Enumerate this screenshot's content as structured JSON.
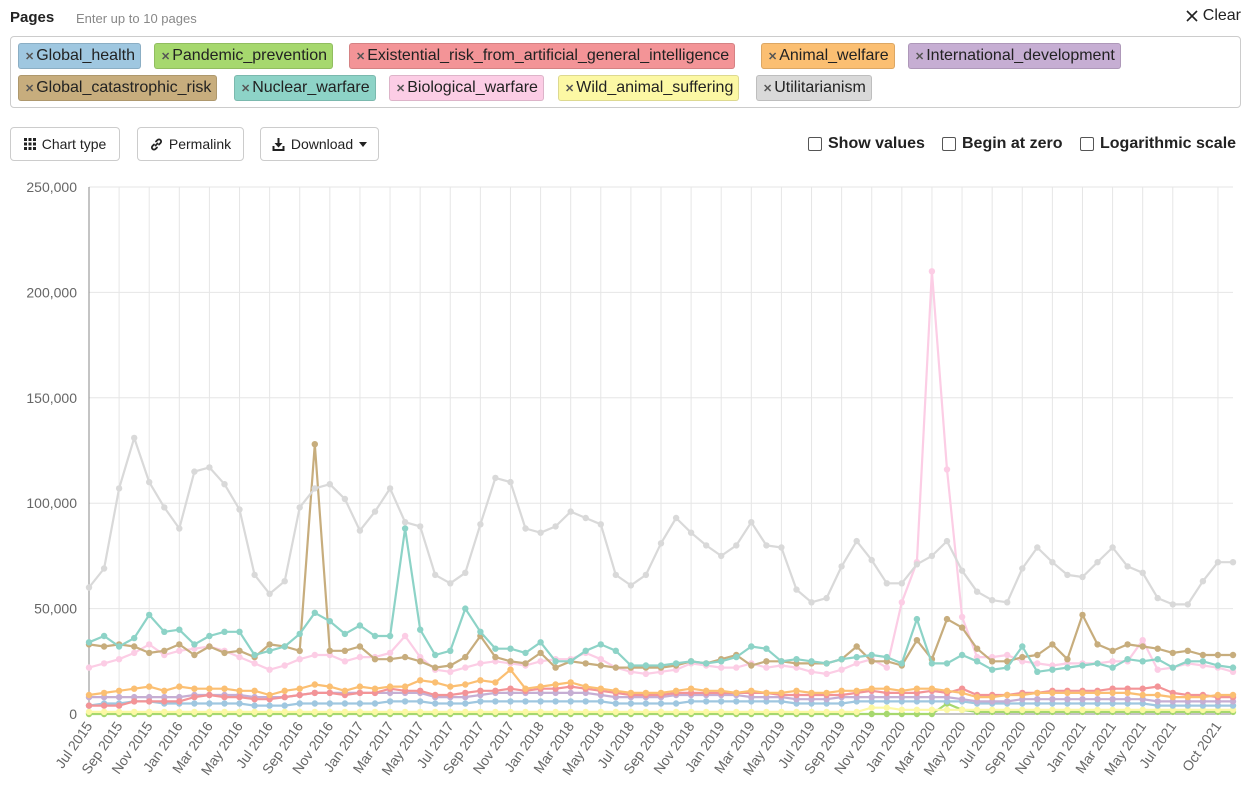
{
  "header": {
    "title": "Pages",
    "hint": "Enter up to 10 pages",
    "clear_label": "Clear"
  },
  "pages": [
    {
      "label": "Global_health",
      "color": "#9fc7e0"
    },
    {
      "label": "Pandemic_prevention",
      "color": "#a6d86e"
    },
    {
      "label": "Existential_risk_from_artificial_general_intelligence",
      "color": "#f39497"
    },
    {
      "label": "Animal_welfare",
      "color": "#fbbf72"
    },
    {
      "label": "International_development",
      "color": "#c6aed3"
    },
    {
      "label": "Global_catastrophic_risk",
      "color": "#c7ad7d"
    },
    {
      "label": "Nuclear_warfare",
      "color": "#8dd3c7"
    },
    {
      "label": "Biological_warfare",
      "color": "#fccde5"
    },
    {
      "label": "Wild_animal_suffering",
      "color": "#fcf8a4"
    },
    {
      "label": "Utilitarianism",
      "color": "#d9d9d9"
    }
  ],
  "toolbar": {
    "chart_type_label": "Chart type",
    "permalink_label": "Permalink",
    "download_label": "Download"
  },
  "options": {
    "show_values": "Show values",
    "begin_at_zero": "Begin at zero",
    "log_scale": "Logarithmic scale"
  },
  "chart_data": {
    "type": "line",
    "ylim": [
      0,
      250000
    ],
    "yticks": [
      "0",
      "50,000",
      "100,000",
      "150,000",
      "200,000",
      "250,000"
    ],
    "grid": true,
    "x": [
      "Jul 2015",
      "Aug 2015",
      "Sep 2015",
      "Oct 2015",
      "Nov 2015",
      "Dec 2015",
      "Jan 2016",
      "Feb 2016",
      "Mar 2016",
      "Apr 2016",
      "May 2016",
      "Jun 2016",
      "Jul 2016",
      "Aug 2016",
      "Sep 2016",
      "Oct 2016",
      "Nov 2016",
      "Dec 2016",
      "Jan 2017",
      "Feb 2017",
      "Mar 2017",
      "Apr 2017",
      "May 2017",
      "Jun 2017",
      "Jul 2017",
      "Aug 2017",
      "Sep 2017",
      "Oct 2017",
      "Nov 2017",
      "Dec 2017",
      "Jan 2018",
      "Feb 2018",
      "Mar 2018",
      "Apr 2018",
      "May 2018",
      "Jun 2018",
      "Jul 2018",
      "Aug 2018",
      "Sep 2018",
      "Oct 2018",
      "Nov 2018",
      "Dec 2018",
      "Jan 2019",
      "Feb 2019",
      "Mar 2019",
      "Apr 2019",
      "May 2019",
      "Jun 2019",
      "Jul 2019",
      "Aug 2019",
      "Sep 2019",
      "Oct 2019",
      "Nov 2019",
      "Dec 2019",
      "Jan 2020",
      "Feb 2020",
      "Mar 2020",
      "Apr 2020",
      "May 2020",
      "Jun 2020",
      "Jul 2020",
      "Aug 2020",
      "Sep 2020",
      "Oct 2020",
      "Nov 2020",
      "Dec 2020",
      "Jan 2021",
      "Feb 2021",
      "Mar 2021",
      "Apr 2021",
      "May 2021",
      "Jun 2021",
      "Jul 2021",
      "Aug 2021",
      "Sep 2021",
      "Oct 2021",
      "Nov 2021"
    ],
    "xtick_labels": [
      "Jul 2015",
      "Sep 2015",
      "Nov 2015",
      "Jan 2016",
      "Mar 2016",
      "May 2016",
      "Jul 2016",
      "Sep 2016",
      "Nov 2016",
      "Jan 2017",
      "Mar 2017",
      "May 2017",
      "Jul 2017",
      "Sep 2017",
      "Nov 2017",
      "Jan 2018",
      "Mar 2018",
      "May 2018",
      "Jul 2018",
      "Sep 2018",
      "Nov 2018",
      "Jan 2019",
      "Mar 2019",
      "May 2019",
      "Jul 2019",
      "Sep 2019",
      "Nov 2019",
      "Jan 2020",
      "Mar 2020",
      "May 2020",
      "Jul 2020",
      "Sep 2020",
      "Nov 2020",
      "Jan 2021",
      "Mar 2021",
      "May 2021",
      "Jul 2021",
      "Oct 2021"
    ],
    "series": [
      {
        "name": "Utilitarianism",
        "color": "#d9d9d9",
        "values": [
          60000,
          69000,
          107000,
          131000,
          110000,
          98000,
          88000,
          115000,
          117000,
          109000,
          97000,
          66000,
          57000,
          63000,
          98000,
          107000,
          109000,
          102000,
          87000,
          96000,
          107000,
          91000,
          89000,
          66000,
          62000,
          67000,
          90000,
          112000,
          110000,
          88000,
          86000,
          89000,
          96000,
          93000,
          90000,
          66000,
          61000,
          66000,
          81000,
          93000,
          86000,
          80000,
          75000,
          80000,
          91000,
          80000,
          79000,
          59000,
          53000,
          55000,
          70000,
          82000,
          73000,
          62000,
          62000,
          71000,
          75000,
          82000,
          68000,
          58000,
          54000,
          53000,
          69000,
          79000,
          72000,
          66000,
          65000,
          72000,
          79000,
          70000,
          67000,
          55000,
          52000,
          52000,
          63000,
          72000,
          72000
        ]
      },
      {
        "name": "Nuclear_warfare",
        "color": "#8dd3c7",
        "values": [
          34000,
          37000,
          32000,
          36000,
          47000,
          39000,
          40000,
          33000,
          37000,
          39000,
          39000,
          28000,
          30000,
          32000,
          38000,
          48000,
          44000,
          38000,
          42000,
          37000,
          37000,
          88000,
          40000,
          28000,
          30000,
          50000,
          39000,
          31000,
          31000,
          29000,
          34000,
          25000,
          25000,
          30000,
          33000,
          30000,
          23000,
          23000,
          23000,
          24000,
          25000,
          24000,
          25000,
          27000,
          32000,
          31000,
          25000,
          26000,
          25000,
          24000,
          26000,
          27000,
          28000,
          27000,
          24000,
          45000,
          24000,
          24000,
          28000,
          25000,
          21000,
          22000,
          32000,
          20000,
          21000,
          22000,
          23000,
          24000,
          22000,
          26000,
          25000,
          26000,
          22000,
          25000,
          25000,
          23000,
          22000
        ]
      },
      {
        "name": "Global_catastrophic_risk",
        "color": "#c7ad7d",
        "values": [
          33000,
          32000,
          33000,
          32000,
          29000,
          30000,
          33000,
          28000,
          32000,
          29000,
          30000,
          27000,
          33000,
          32000,
          30000,
          128000,
          30000,
          30000,
          32000,
          26000,
          26000,
          27000,
          25000,
          22000,
          23000,
          27000,
          37000,
          27000,
          25000,
          24000,
          29000,
          22000,
          25000,
          24000,
          23000,
          22000,
          22000,
          22000,
          22000,
          23000,
          25000,
          24000,
          26000,
          28000,
          23000,
          25000,
          25000,
          24000,
          24000,
          24000,
          26000,
          32000,
          25000,
          25000,
          23000,
          35000,
          26000,
          45000,
          41000,
          31000,
          25000,
          25000,
          27000,
          28000,
          33000,
          26000,
          47000,
          33000,
          30000,
          33000,
          32000,
          31000,
          29000,
          30000,
          28000,
          28000,
          28000
        ]
      },
      {
        "name": "Biological_warfare",
        "color": "#fccde5",
        "values": [
          22000,
          24000,
          26000,
          29000,
          33000,
          28000,
          30000,
          31000,
          32000,
          30000,
          27000,
          24000,
          21000,
          23000,
          26000,
          28000,
          28000,
          25000,
          27000,
          27000,
          29000,
          37000,
          27000,
          21000,
          20000,
          22000,
          24000,
          25000,
          24000,
          23000,
          25000,
          26000,
          26000,
          29000,
          26000,
          22000,
          20000,
          19000,
          20000,
          21000,
          24000,
          23000,
          22000,
          22000,
          24000,
          22000,
          23000,
          22000,
          20000,
          19000,
          21000,
          24000,
          26000,
          22000,
          53000,
          72000,
          210000,
          116000,
          46000,
          27000,
          27000,
          28000,
          25000,
          24000,
          23000,
          24000,
          24000,
          24000,
          25000,
          25000,
          35000,
          21000,
          22000,
          24000,
          23000,
          22000,
          20000
        ]
      },
      {
        "name": "Animal_welfare",
        "color": "#fbbf72",
        "values": [
          9000,
          10000,
          11000,
          12000,
          13000,
          11000,
          13000,
          12000,
          12000,
          12000,
          11000,
          11000,
          9000,
          11000,
          12000,
          14000,
          13000,
          11000,
          13000,
          12000,
          13000,
          13000,
          16000,
          15000,
          13000,
          14000,
          16000,
          15000,
          21000,
          12000,
          13000,
          14000,
          15000,
          13000,
          12000,
          11000,
          10000,
          10000,
          10000,
          11000,
          12000,
          11000,
          11000,
          10000,
          11000,
          10000,
          10000,
          11000,
          10000,
          10000,
          11000,
          11000,
          12000,
          12000,
          11000,
          12000,
          12000,
          11000,
          10000,
          8000,
          8000,
          9000,
          9000,
          10000,
          10000,
          10000,
          10000,
          10000,
          10000,
          10000,
          9000,
          9000,
          8000,
          8000,
          8000,
          9000,
          9000
        ]
      },
      {
        "name": "Existential_risk_from_artificial_general_intelligence",
        "color": "#f39497",
        "values": [
          4000,
          4000,
          4000,
          6000,
          6000,
          6000,
          6000,
          8000,
          9000,
          8000,
          8000,
          7000,
          7000,
          8000,
          9000,
          10000,
          10000,
          9000,
          10000,
          10000,
          12000,
          11000,
          11000,
          9000,
          9000,
          10000,
          11000,
          11000,
          12000,
          11000,
          12000,
          12000,
          13000,
          12000,
          11000,
          10000,
          9000,
          9000,
          9000,
          10000,
          10000,
          10000,
          10000,
          10000,
          10000,
          10000,
          9000,
          9000,
          9000,
          9000,
          9000,
          10000,
          11000,
          10000,
          10000,
          10000,
          11000,
          10000,
          12000,
          9000,
          9000,
          9000,
          10000,
          10000,
          11000,
          11000,
          11000,
          11000,
          12000,
          12000,
          12000,
          13000,
          10000,
          9000,
          9000,
          8000,
          8000
        ]
      },
      {
        "name": "International_development",
        "color": "#c6aed3",
        "values": [
          8000,
          8000,
          8000,
          8000,
          8000,
          8000,
          8000,
          9000,
          9000,
          9000,
          9000,
          8000,
          8000,
          8000,
          9000,
          10000,
          10000,
          10000,
          10000,
          10000,
          10000,
          10000,
          10000,
          8000,
          8000,
          8000,
          9000,
          10000,
          10000,
          10000,
          10000,
          10000,
          10000,
          10000,
          9000,
          8000,
          8000,
          8000,
          8000,
          9000,
          9000,
          9000,
          9000,
          9000,
          8000,
          8000,
          8000,
          7000,
          7000,
          7000,
          8000,
          8000,
          8000,
          8000,
          8000,
          8000,
          8000,
          8000,
          7000,
          6000,
          6000,
          6000,
          7000,
          7000,
          7000,
          7000,
          7000,
          7000,
          7000,
          7000,
          7000,
          6000,
          6000,
          6000,
          6000,
          6000,
          6000
        ]
      },
      {
        "name": "Global_health",
        "color": "#9fc7e0",
        "values": [
          4000,
          5000,
          5000,
          6000,
          6000,
          5000,
          5000,
          5000,
          5000,
          5000,
          5000,
          4000,
          4000,
          4000,
          5000,
          5000,
          5000,
          5000,
          5000,
          5000,
          6000,
          6000,
          6000,
          5000,
          5000,
          5000,
          6000,
          6000,
          6000,
          6000,
          6000,
          6000,
          6000,
          6000,
          6000,
          5000,
          5000,
          5000,
          5000,
          5000,
          6000,
          6000,
          6000,
          6000,
          6000,
          6000,
          6000,
          5000,
          5000,
          5000,
          5000,
          6000,
          6000,
          6000,
          6000,
          6000,
          6000,
          6000,
          6000,
          5000,
          5000,
          5000,
          5000,
          5000,
          5000,
          5000,
          5000,
          5000,
          5000,
          5000,
          5000,
          4000,
          4000,
          4000,
          4000,
          4000,
          4000
        ]
      },
      {
        "name": "Wild_animal_suffering",
        "color": "#fcf8a4",
        "values": [
          1000,
          1000,
          1000,
          1000,
          1000,
          1000,
          1000,
          1000,
          1000,
          1000,
          1000,
          1000,
          1000,
          1000,
          1000,
          1000,
          1000,
          1000,
          1000,
          1000,
          1000,
          1000,
          1000,
          1000,
          1000,
          1000,
          1000,
          1000,
          1000,
          1000,
          1000,
          1000,
          1000,
          1000,
          1000,
          1000,
          1000,
          1000,
          1000,
          1000,
          1000,
          1000,
          1000,
          1000,
          1000,
          1000,
          1000,
          1000,
          1000,
          1000,
          1000,
          1000,
          3000,
          3000,
          2000,
          2000,
          2000,
          2000,
          2000,
          2000,
          2000,
          2000,
          2000,
          2000,
          2000,
          2000,
          2000,
          2000,
          2000,
          2000,
          2000,
          2000,
          2000,
          2000,
          2000,
          2000,
          2000
        ]
      },
      {
        "name": "Pandemic_prevention",
        "color": "#a6d86e",
        "values": [
          0,
          0,
          0,
          0,
          0,
          0,
          0,
          0,
          0,
          0,
          0,
          0,
          0,
          0,
          0,
          0,
          0,
          0,
          0,
          0,
          0,
          0,
          0,
          0,
          0,
          0,
          0,
          0,
          0,
          0,
          0,
          0,
          0,
          0,
          0,
          0,
          0,
          0,
          0,
          0,
          0,
          0,
          0,
          0,
          0,
          0,
          0,
          0,
          0,
          0,
          0,
          0,
          0,
          0,
          0,
          0,
          0,
          5000,
          2000,
          1000,
          1000,
          1000,
          1000,
          1000,
          1000,
          1000,
          1000,
          1000,
          1000,
          1000,
          1000,
          1000,
          1000,
          1000,
          1000,
          1000,
          1000
        ]
      }
    ]
  }
}
